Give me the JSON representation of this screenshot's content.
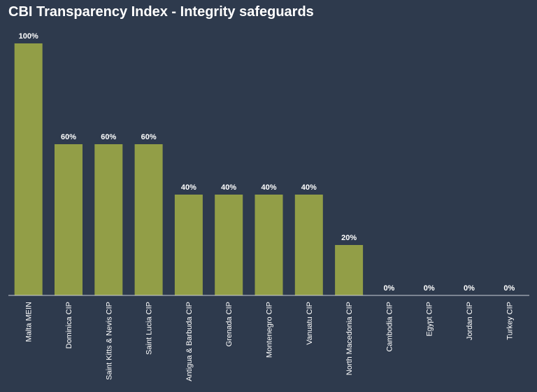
{
  "title": "CBI Transparency Index - Integrity safeguards",
  "chart_data": {
    "type": "bar",
    "title": "CBI Transparency Index - Integrity safeguards",
    "xlabel": "",
    "ylabel": "",
    "ylim": [
      0,
      100
    ],
    "grid": false,
    "categories": [
      "Malta MEIN",
      "Dominica CIP",
      "Saint Kitts & Nevis CIP",
      "Saint Lucia CIP",
      "Antigua & Barbuda CIP",
      "Grenada CIP",
      "Montenegro CIP",
      "Vanuatu CIP",
      "North Macedonia CIP",
      "Cambodia CIP",
      "Egypt CIP",
      "Jordan CIP",
      "Turkey CIP"
    ],
    "values": [
      100,
      60,
      60,
      60,
      40,
      40,
      40,
      40,
      20,
      0,
      0,
      0,
      0
    ],
    "value_labels": [
      "100%",
      "60%",
      "60%",
      "60%",
      "40%",
      "40%",
      "40%",
      "40%",
      "20%",
      "0%",
      "0%",
      "0%",
      "0%"
    ],
    "bar_color": "#929e47",
    "background_color": "#2e3a4d",
    "axis_color": "#c9ced6"
  }
}
